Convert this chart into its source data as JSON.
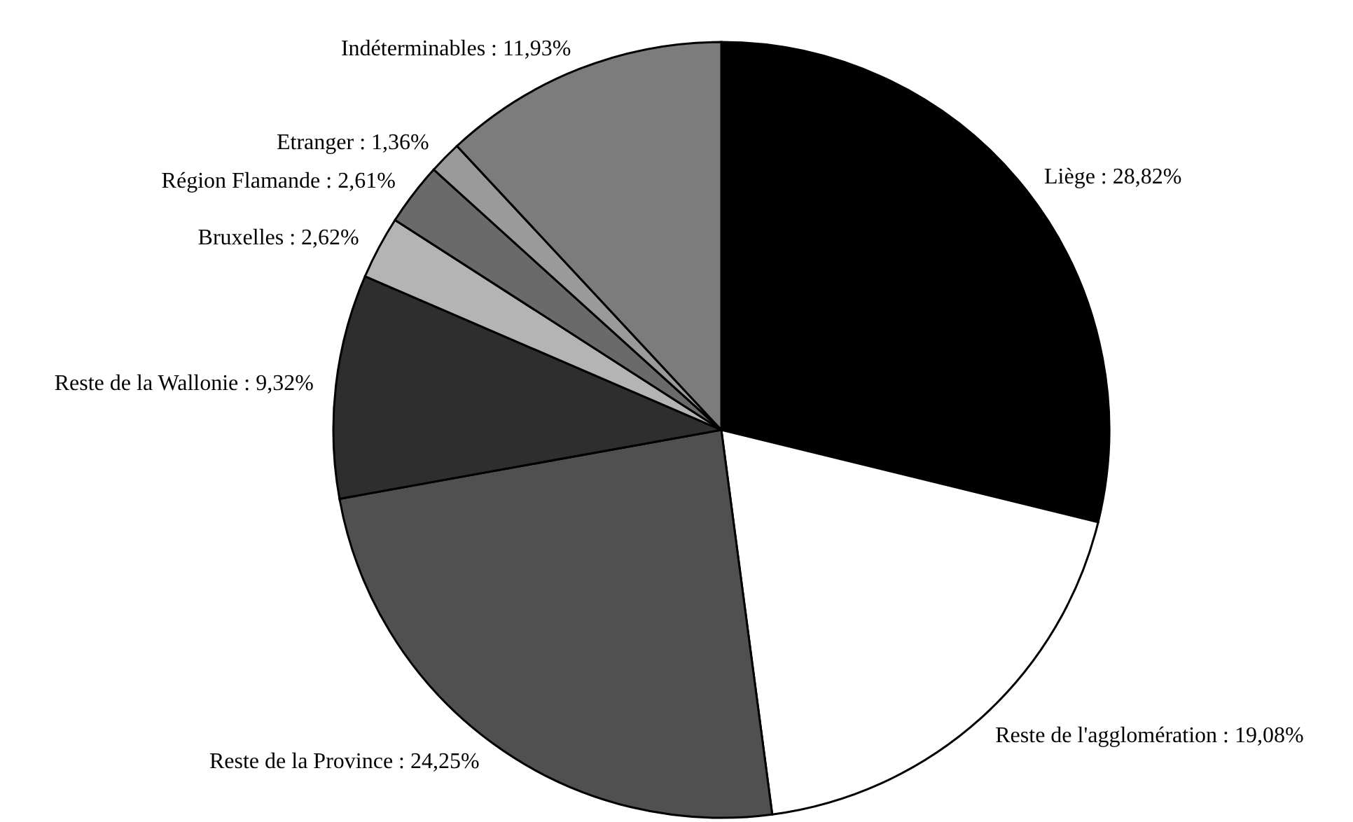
{
  "chart_data": {
    "type": "pie",
    "categories": [
      "Liège",
      "Reste de l'agglomération",
      "Reste de la Province",
      "Reste de la Wallonie",
      "Bruxelles",
      "Région Flamande",
      "Etranger",
      "Indéterminables"
    ],
    "values": [
      28.82,
      19.08,
      24.25,
      9.32,
      2.62,
      2.61,
      1.36,
      11.93
    ],
    "colors": [
      "#000000",
      "#ffffff",
      "#505050",
      "#2e2e2e",
      "#b4b4b4",
      "#6a6a6a",
      "#9a9a9a",
      "#7c7c7c"
    ],
    "value_labels": [
      "28,82%",
      "19,08%",
      "24,25%",
      "9,32%",
      "2,62%",
      "2,61%",
      "1,36%",
      "11,93%"
    ]
  }
}
